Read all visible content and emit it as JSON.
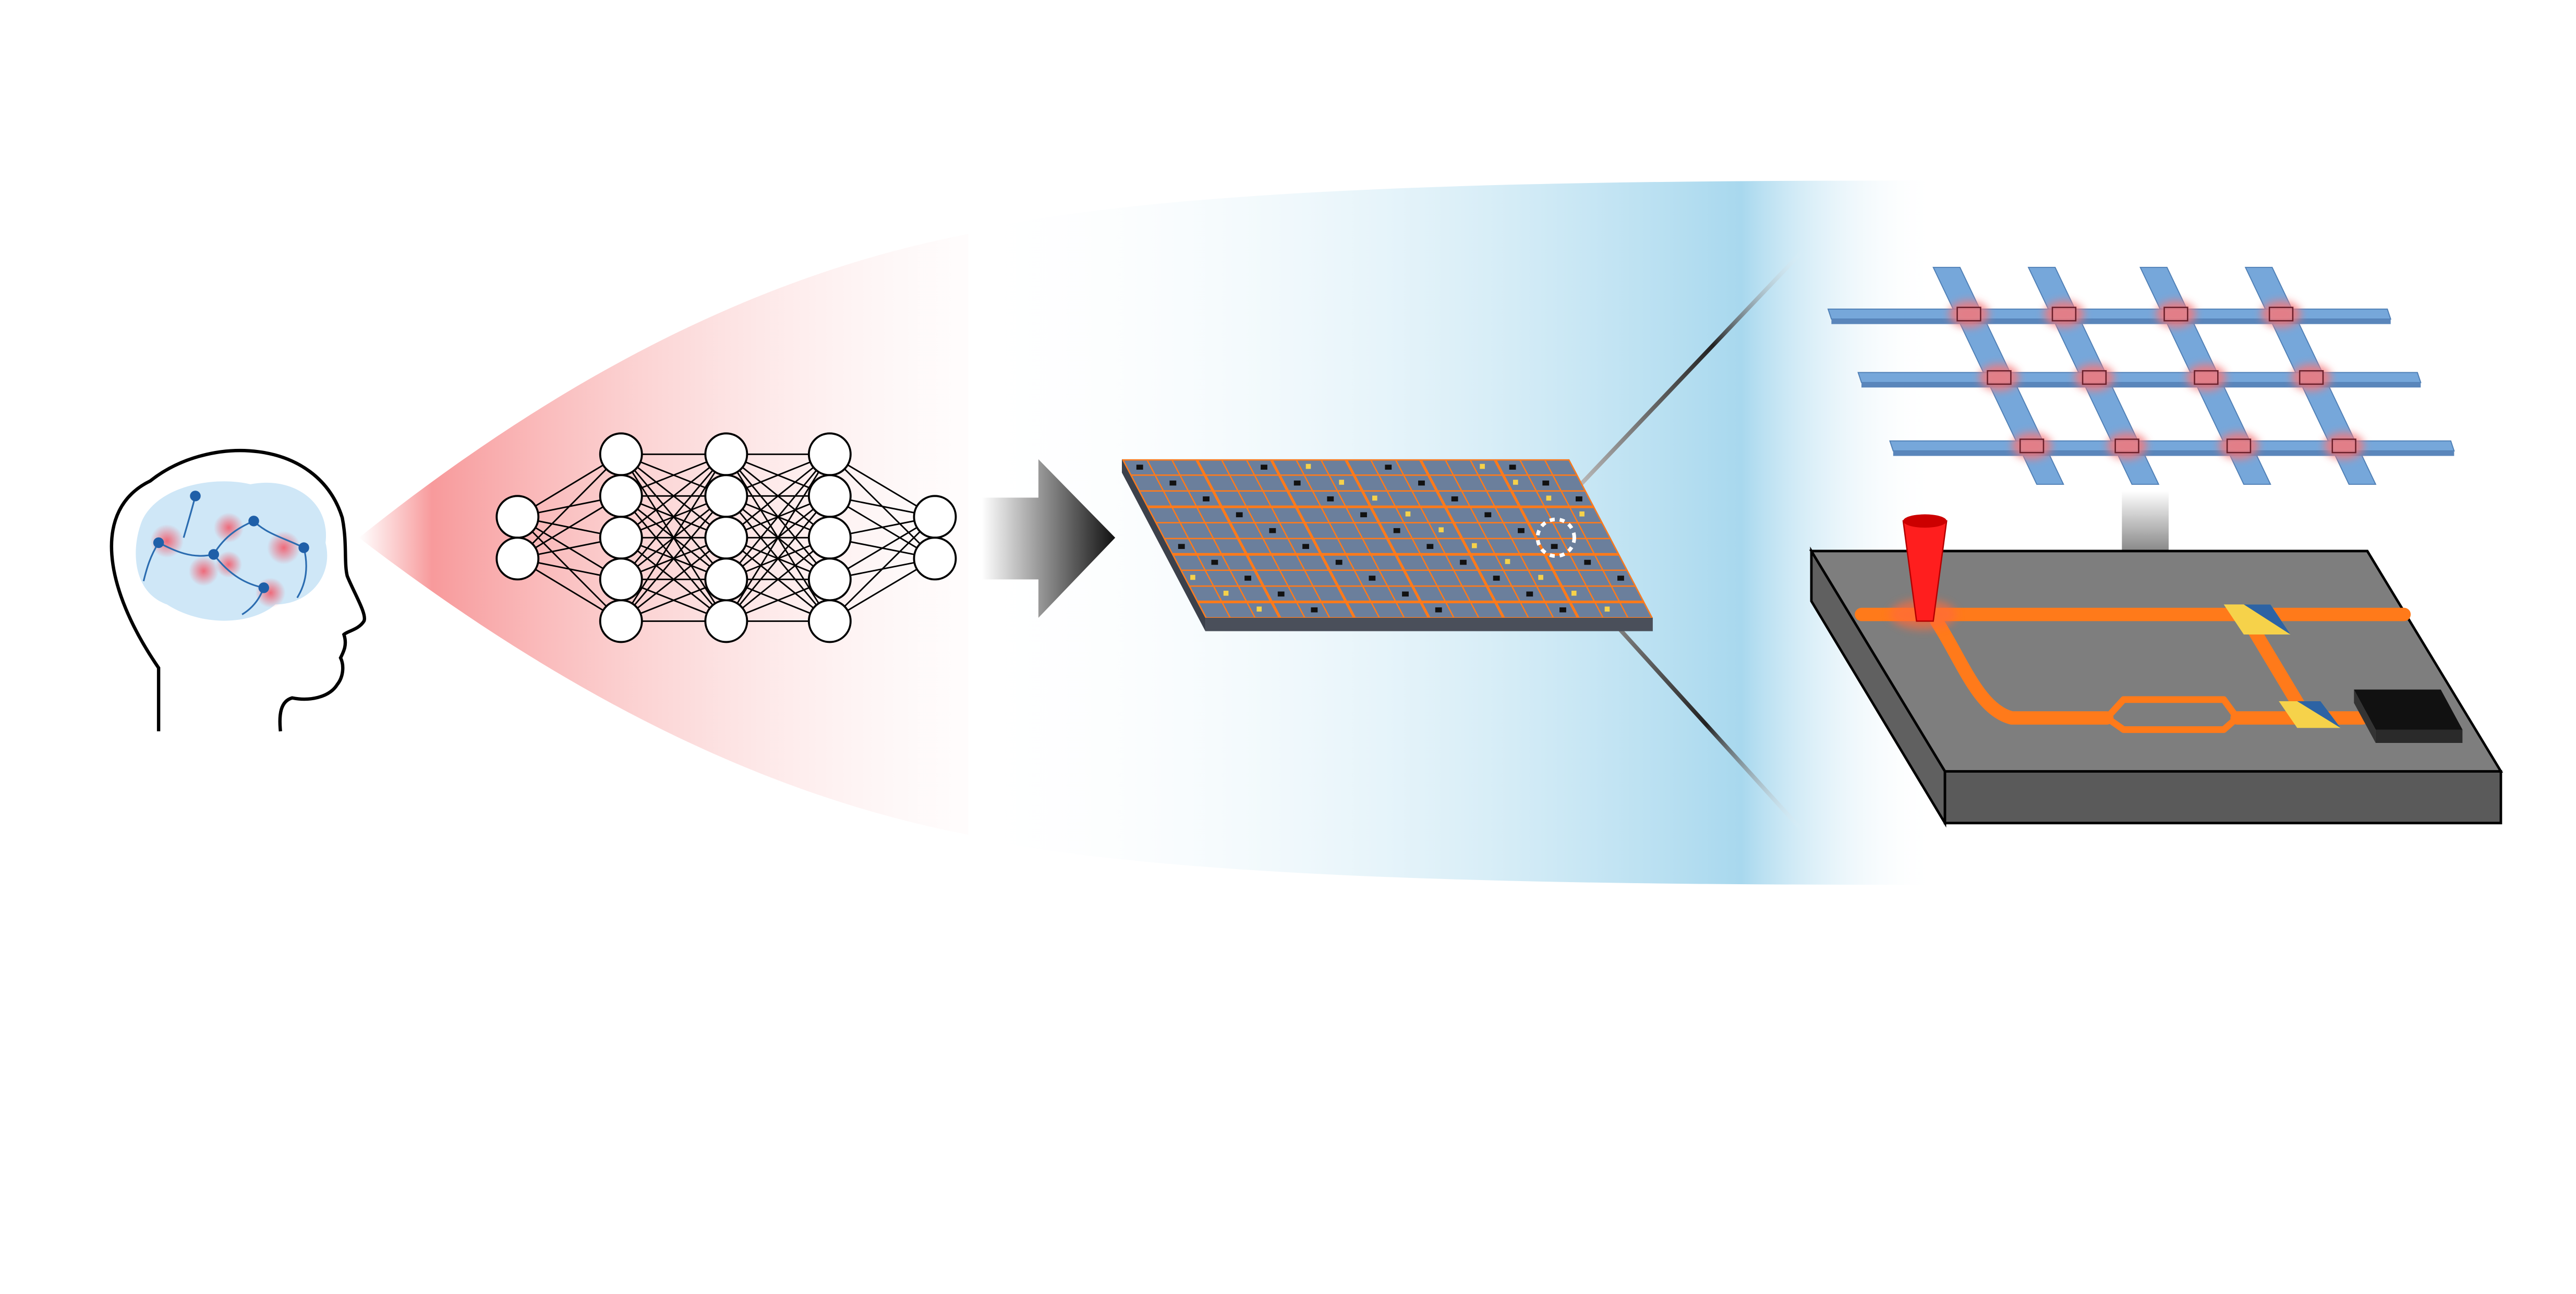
{
  "diagram": {
    "stages": [
      {
        "id": "brain",
        "icon": "human-head-with-brain-neurons-icon"
      },
      {
        "id": "ann",
        "icon": "artificial-neural-network-icon",
        "layers": [
          2,
          5,
          5,
          5,
          2
        ]
      },
      {
        "id": "chip",
        "icon": "photonic-chip-array-icon"
      },
      {
        "id": "crossbar",
        "icon": "crossbar-array-icon",
        "rows": 3,
        "columns": 4
      },
      {
        "id": "device",
        "icon": "photonic-device-icon"
      }
    ],
    "colors": {
      "red_glow": "#f5787a",
      "blue_glow": "#a8d8ee",
      "waveguide": "#ff7a1a",
      "crossbar_bar": "#76a7da",
      "chip_top": "#7e7e7e",
      "chip_side": "#555555",
      "laser": "#ff1e1e",
      "splitter_yellow": "#f6d24a",
      "splitter_blue": "#2d63a4"
    }
  }
}
